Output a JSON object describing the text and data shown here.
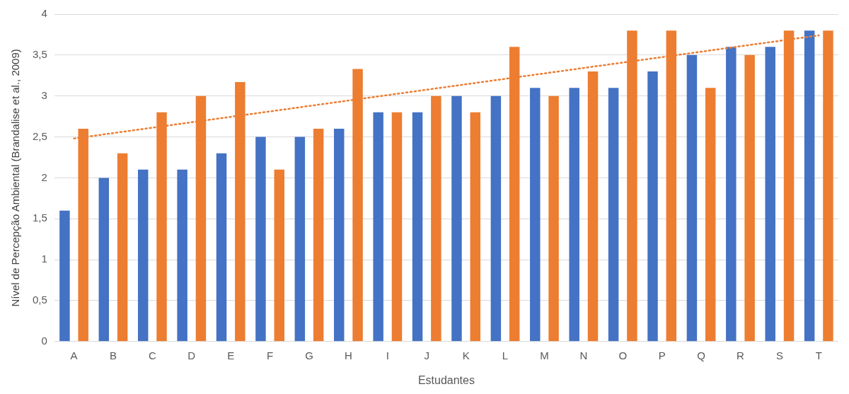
{
  "chart_data": {
    "type": "bar",
    "xlabel": "Estudantes",
    "ylabel": "Nível de Percepção Ambiental (Brandalise et al., 2009)",
    "categories": [
      "A",
      "B",
      "C",
      "D",
      "E",
      "F",
      "G",
      "H",
      "I",
      "J",
      "K",
      "L",
      "M",
      "N",
      "O",
      "P",
      "Q",
      "R",
      "S",
      "T"
    ],
    "series": [
      {
        "color": "#4472c4",
        "values": [
          1.6,
          2.0,
          2.1,
          2.1,
          2.3,
          2.5,
          2.5,
          2.6,
          2.8,
          2.8,
          3.0,
          3.0,
          3.1,
          3.1,
          3.1,
          3.3,
          3.5,
          3.6,
          3.6,
          3.8
        ]
      },
      {
        "color": "#ed7d31",
        "values": [
          2.6,
          2.3,
          2.8,
          3.0,
          3.17,
          2.1,
          2.6,
          3.33,
          2.8,
          3.0,
          2.8,
          3.6,
          3.0,
          3.3,
          3.8,
          3.8,
          3.1,
          3.5,
          3.8,
          3.8
        ]
      },
      {
        "type": "line",
        "color": "#ed7d31",
        "line_style": "dotted",
        "marker": "none",
        "x": [
          "A",
          "T"
        ],
        "values": [
          2.48,
          3.74
        ]
      }
    ],
    "ylim": [
      0,
      4
    ],
    "yticks": [
      {
        "value": 0,
        "label": "0"
      },
      {
        "value": 0.5,
        "label": "0,5"
      },
      {
        "value": 1,
        "label": "1"
      },
      {
        "value": 1.5,
        "label": "1,5"
      },
      {
        "value": 2,
        "label": "2"
      },
      {
        "value": 2.5,
        "label": "2,5"
      },
      {
        "value": 3,
        "label": "3"
      },
      {
        "value": 3.5,
        "label": "3,5"
      },
      {
        "value": 4,
        "label": "4"
      }
    ],
    "grid": "y",
    "legend": false
  }
}
